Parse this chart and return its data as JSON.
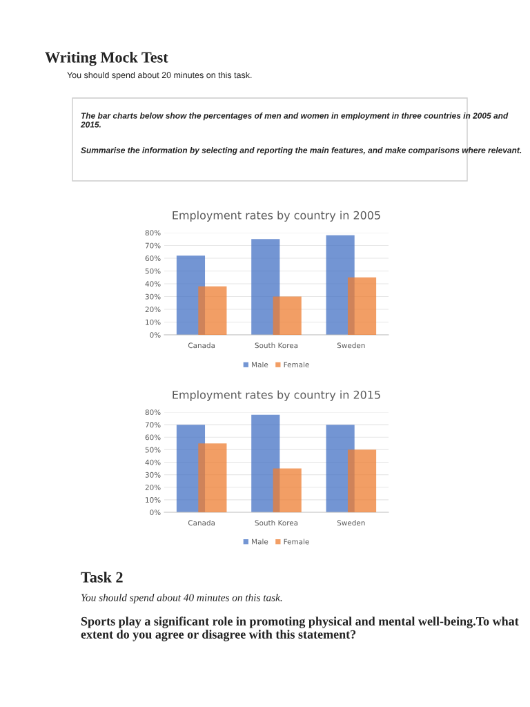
{
  "chart_data": [
    {
      "type": "bar",
      "title": "Employment rates by country in 2005",
      "categories": [
        "Canada",
        "South Korea",
        "Sweden"
      ],
      "series": [
        {
          "name": "Male",
          "color": "#4472c4",
          "values": [
            62,
            75,
            78
          ]
        },
        {
          "name": "Female",
          "color": "#ed7d31",
          "values": [
            38,
            30,
            45
          ]
        }
      ],
      "ylim": [
        0,
        80
      ],
      "yticks": [
        {
          "value": 0,
          "label": "0%"
        },
        {
          "value": 10,
          "label": "10%"
        },
        {
          "value": 20,
          "label": "20%"
        },
        {
          "value": 30,
          "label": "30%"
        },
        {
          "value": 40,
          "label": "40%"
        },
        {
          "value": 50,
          "label": "50%"
        },
        {
          "value": 60,
          "label": "60%"
        },
        {
          "value": 70,
          "label": "70%"
        },
        {
          "value": 80,
          "label": "80%"
        }
      ],
      "grid": "y",
      "legend": "bottom",
      "annotations": [
        "Writing Mock Test",
        "You should spend about 20 minutes on this task.",
        "The bar charts below show the percentages of men and women in employment in three countries in 2005 and 2015.",
        "Summarise the information by selecting and reporting the main features, and make comparisons where relevant."
      ]
    },
    {
      "type": "bar",
      "title": "Employment rates by country in 2015",
      "categories": [
        "Canada",
        "South Korea",
        "Sweden"
      ],
      "series": [
        {
          "name": "Male",
          "color": "#4472c4",
          "values": [
            70,
            78,
            70
          ]
        },
        {
          "name": "Female",
          "color": "#ed7d31",
          "values": [
            55,
            35,
            50
          ]
        }
      ],
      "ylim": [
        0,
        80
      ],
      "yticks": [
        {
          "value": 0,
          "label": "0%"
        },
        {
          "value": 10,
          "label": "10%"
        },
        {
          "value": 20,
          "label": "20%"
        },
        {
          "value": 30,
          "label": "30%"
        },
        {
          "value": 40,
          "label": "40%"
        },
        {
          "value": 50,
          "label": "50%"
        },
        {
          "value": 60,
          "label": "60%"
        },
        {
          "value": 70,
          "label": "70%"
        },
        {
          "value": 80,
          "label": "80%"
        }
      ],
      "grid": "y",
      "legend": "bottom",
      "annotations": [
        "Task 2",
        "You should spend about 40 minutes on this task.",
        "Sports play a significant role in promoting physical and mental well-being.To what extent do you agree or disagree with this statement?"
      ]
    }
  ]
}
